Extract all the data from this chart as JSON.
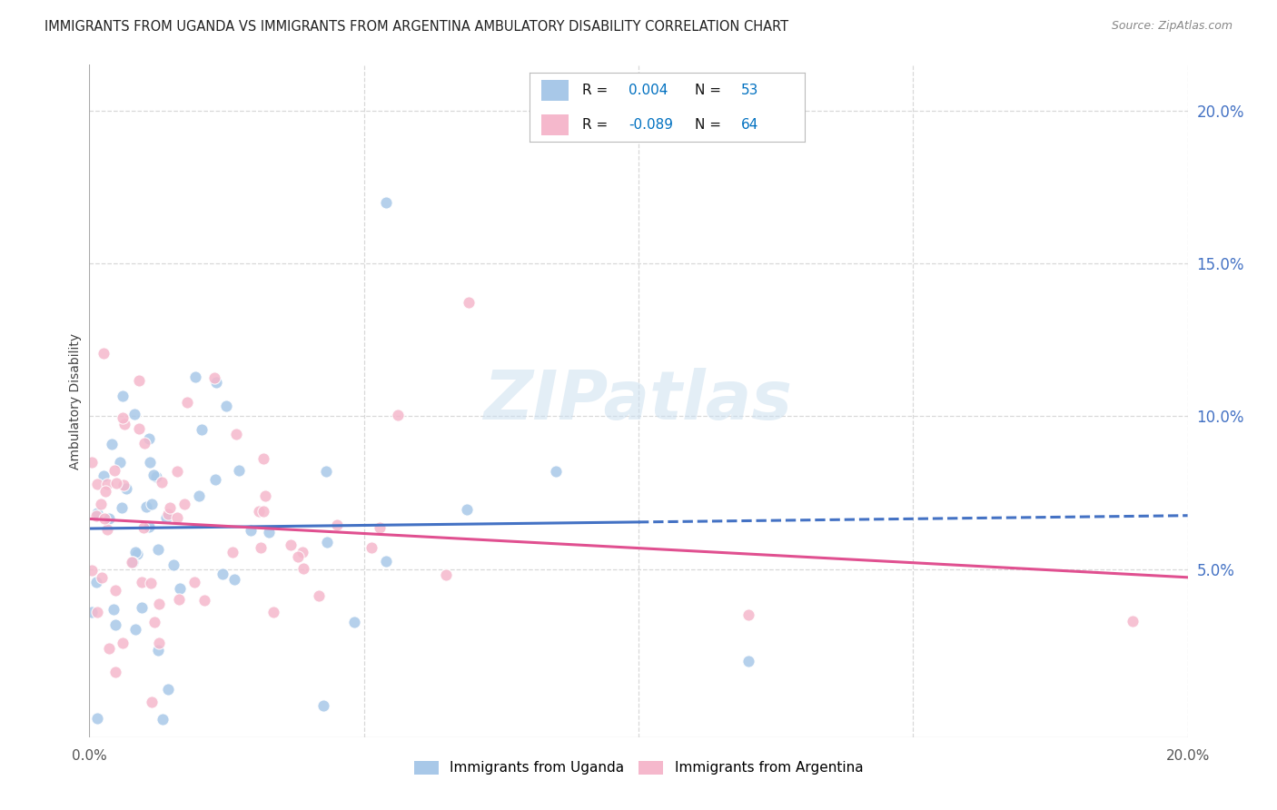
{
  "title": "IMMIGRANTS FROM UGANDA VS IMMIGRANTS FROM ARGENTINA AMBULATORY DISABILITY CORRELATION CHART",
  "source": "Source: ZipAtlas.com",
  "ylabel": "Ambulatory Disability",
  "legend_uganda": "Immigrants from Uganda",
  "legend_argentina": "Immigrants from Argentina",
  "r_uganda": "0.004",
  "n_uganda": "53",
  "r_argentina": "-0.089",
  "n_argentina": "64",
  "color_uganda": "#a8c8e8",
  "color_argentina": "#f5b8cc",
  "color_uganda_line": "#4472c4",
  "color_argentina_line": "#e05090",
  "color_blue": "#0070c0",
  "color_axis_right": "#4472c4",
  "xlim": [
    0.0,
    0.2
  ],
  "ylim": [
    -0.005,
    0.215
  ],
  "yticks": [
    0.05,
    0.1,
    0.15,
    0.2
  ],
  "ytick_labels": [
    "5.0%",
    "10.0%",
    "15.0%",
    "20.0%"
  ],
  "background_color": "#ffffff",
  "grid_color": "#d8d8d8",
  "ug_trend_x0": 0.0,
  "ug_trend_y0": 0.0665,
  "ug_trend_x1": 0.2,
  "ug_trend_y1": 0.068,
  "ar_trend_x0": 0.0,
  "ar_trend_y0": 0.073,
  "ar_trend_x1": 0.2,
  "ar_trend_y1": 0.047
}
